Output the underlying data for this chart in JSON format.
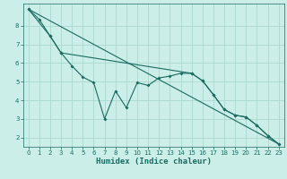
{
  "xlabel": "Humidex (Indice chaleur)",
  "bg_color": "#cceee8",
  "grid_color": "#aad8d0",
  "line_color": "#1a6b60",
  "xlim": [
    -0.5,
    23.5
  ],
  "ylim": [
    1.5,
    9.2
  ],
  "xticks": [
    0,
    1,
    2,
    3,
    4,
    5,
    6,
    7,
    8,
    9,
    10,
    11,
    12,
    13,
    14,
    15,
    16,
    17,
    18,
    19,
    20,
    21,
    22,
    23
  ],
  "yticks": [
    2,
    3,
    4,
    5,
    6,
    7,
    8
  ],
  "line1_x": [
    0,
    1,
    2,
    3,
    4,
    5,
    6,
    7,
    8,
    9,
    10,
    11,
    12,
    13,
    14,
    15,
    16,
    17,
    18,
    19,
    20,
    21,
    22,
    23
  ],
  "line1_y": [
    8.9,
    8.35,
    7.45,
    6.55,
    5.85,
    5.25,
    4.95,
    3.0,
    4.5,
    3.6,
    4.95,
    4.8,
    5.2,
    5.3,
    5.45,
    5.45,
    5.05,
    4.3,
    3.5,
    3.2,
    3.1,
    2.65,
    2.1,
    1.65
  ],
  "line2_x": [
    0,
    23
  ],
  "line2_y": [
    8.9,
    1.65
  ],
  "line3_x": [
    0,
    2,
    3,
    15,
    16,
    17,
    18,
    19,
    20,
    21,
    22,
    23
  ],
  "line3_y": [
    8.9,
    7.45,
    6.55,
    5.45,
    5.05,
    4.3,
    3.5,
    3.2,
    3.1,
    2.65,
    2.1,
    1.65
  ]
}
